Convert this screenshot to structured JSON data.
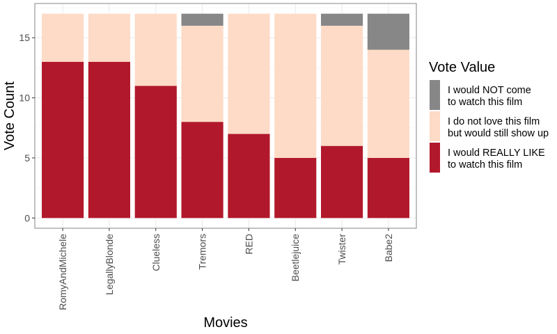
{
  "chart_data": {
    "type": "bar",
    "stacked": true,
    "categories": [
      "RomyAndMichele",
      "LegallyBlonde",
      "Clueless",
      "Tremors",
      "RED",
      "Beetlejuice",
      "Twister",
      "Babe2"
    ],
    "series": [
      {
        "name": "I would REALLY LIKE to watch this film",
        "name_lines": [
          "I would REALLY LIKE",
          "to watch this film"
        ],
        "color": "#b2182b",
        "values": [
          13,
          13,
          11,
          8,
          7,
          5,
          6,
          5
        ]
      },
      {
        "name": "I do not love this film but would still show up",
        "name_lines": [
          "I do not love this film",
          "but would still show up"
        ],
        "color": "#fddbc7",
        "values": [
          4,
          4,
          6,
          8,
          10,
          12,
          10,
          9
        ]
      },
      {
        "name": "I would NOT come to watch this film",
        "name_lines": [
          "I would NOT come",
          "to watch this film"
        ],
        "color": "#878787",
        "values": [
          0,
          0,
          0,
          1,
          0,
          0,
          1,
          3
        ]
      }
    ],
    "xlabel": "Movies",
    "ylabel": "Vote Count",
    "ylim": [
      -0.85,
      17.85
    ],
    "yticks": [
      0,
      5,
      10,
      15
    ],
    "ytick_labels": [
      "0",
      "5",
      "10",
      "15"
    ],
    "grid": true,
    "legend": {
      "title": "Vote Value",
      "placement": "right",
      "order": [
        2,
        1,
        0
      ]
    }
  }
}
